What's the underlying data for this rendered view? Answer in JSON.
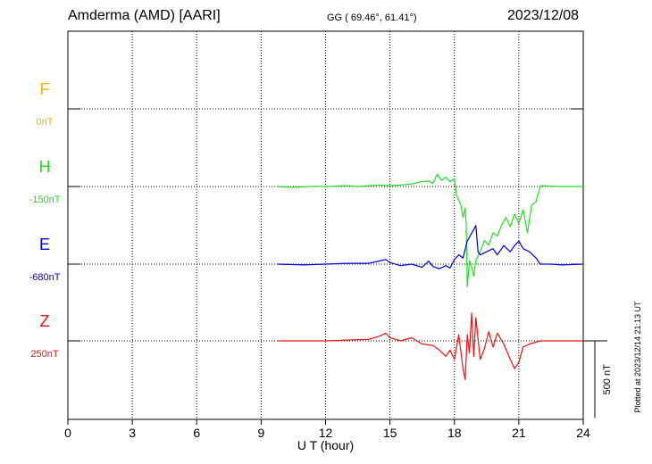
{
  "header": {
    "station": "Amderma (AMD)  [AARI]",
    "coords": "GG ( 69.46°,  61.41°)",
    "date": "2023/12/08"
  },
  "plotted_note": "Plotted at 2023/12/14 21:13 UT",
  "scale_label": "500 nT",
  "chart_data": {
    "type": "line",
    "xlabel": "U T (hour)",
    "xlim": [
      0,
      24
    ],
    "xticks": [
      0,
      3,
      6,
      9,
      12,
      15,
      18,
      21,
      24
    ],
    "grid": true,
    "series": [
      {
        "name": "F",
        "baseline": "0nT",
        "color": "#f0b400",
        "x": [],
        "y": []
      },
      {
        "name": "H",
        "baseline": "-150nT",
        "color": "#22dd22",
        "x": [
          9.75,
          10.5,
          11.5,
          12.0,
          13.0,
          13.5,
          14.0,
          14.5,
          15.0,
          15.5,
          16.0,
          16.4,
          16.8,
          17.0,
          17.2,
          17.4,
          17.6,
          17.8,
          18.0,
          18.1,
          18.2,
          18.3,
          18.4,
          18.5,
          18.55,
          18.6,
          18.7,
          18.8,
          18.9,
          19.0,
          19.2,
          19.4,
          19.6,
          19.8,
          20.0,
          20.2,
          20.4,
          20.6,
          20.8,
          21.0,
          21.2,
          21.4,
          21.6,
          21.8,
          22.0,
          23.0,
          24.0
        ],
        "y": [
          0,
          -5,
          2,
          0,
          5,
          0,
          5,
          10,
          5,
          10,
          15,
          30,
          35,
          20,
          80,
          40,
          60,
          30,
          50,
          -60,
          -90,
          -120,
          -200,
          -140,
          -250,
          -650,
          -480,
          -520,
          -580,
          -480,
          -420,
          -350,
          -380,
          -300,
          -320,
          -250,
          -200,
          -260,
          -180,
          -240,
          -150,
          -300,
          -120,
          -100,
          5,
          0,
          0
        ]
      },
      {
        "name": "E",
        "baseline": "-680nT",
        "color": "#0000dd",
        "x": [
          9.75,
          11.0,
          12.0,
          13.0,
          14.0,
          14.5,
          14.8,
          15.0,
          15.5,
          16.0,
          16.5,
          16.8,
          17.0,
          17.3,
          17.6,
          17.8,
          18.0,
          18.2,
          18.4,
          18.6,
          18.8,
          19.0,
          19.1,
          19.2,
          19.5,
          19.8,
          20.0,
          20.3,
          20.6,
          20.8,
          21.0,
          21.2,
          21.5,
          21.8,
          22.0,
          22.5,
          23.0,
          24.0
        ],
        "y": [
          0,
          -5,
          0,
          5,
          5,
          20,
          30,
          10,
          -10,
          0,
          -20,
          20,
          -15,
          -30,
          -10,
          -25,
          30,
          60,
          40,
          150,
          200,
          250,
          80,
          60,
          80,
          100,
          60,
          120,
          80,
          120,
          150,
          100,
          80,
          40,
          0,
          0,
          -5,
          0
        ]
      },
      {
        "name": "Z",
        "baseline": "250nT",
        "color": "#ee1111",
        "x": [
          9.75,
          11.0,
          12.0,
          13.0,
          14.0,
          14.5,
          14.8,
          15.0,
          15.5,
          16.0,
          16.5,
          17.0,
          17.3,
          17.6,
          17.8,
          18.0,
          18.2,
          18.4,
          18.5,
          18.6,
          18.7,
          18.8,
          18.9,
          19.0,
          19.2,
          19.4,
          19.6,
          19.8,
          20.0,
          20.3,
          20.6,
          20.8,
          21.0,
          21.2,
          21.5,
          22.0,
          23.0,
          24.0
        ],
        "y": [
          0,
          0,
          0,
          5,
          10,
          30,
          50,
          20,
          0,
          20,
          -20,
          -30,
          -60,
          -100,
          -60,
          -120,
          40,
          -180,
          -250,
          40,
          -80,
          180,
          -100,
          150,
          -120,
          -50,
          60,
          -40,
          50,
          -20,
          -120,
          -180,
          -140,
          -40,
          -20,
          0,
          0,
          0
        ]
      }
    ]
  }
}
